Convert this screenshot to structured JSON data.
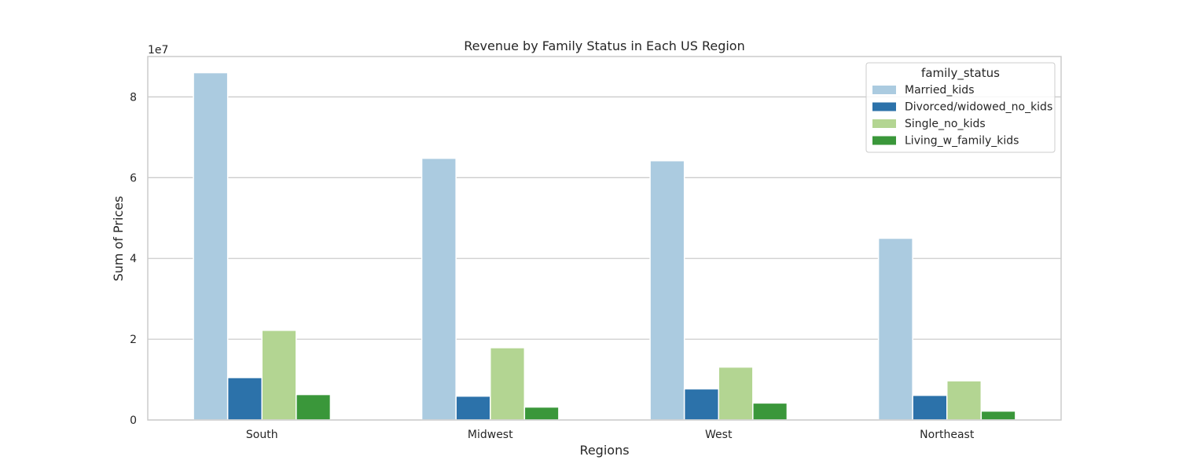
{
  "chart_data": {
    "type": "bar",
    "title": "Revenue by Family Status in Each US Region",
    "xlabel": "Regions",
    "ylabel": "Sum of Prices",
    "y_offset_label": "1e7",
    "categories": [
      "South",
      "Midwest",
      "West",
      "Northeast"
    ],
    "ylim": [
      0,
      9.0
    ],
    "yticks": [
      0,
      2,
      4,
      6,
      8
    ],
    "grid": true,
    "legend": {
      "title": "family_status",
      "placement": "top-right"
    },
    "series": [
      {
        "name": "Married_kids",
        "color": "#abcbe0",
        "values": [
          8.6,
          6.48,
          6.42,
          4.5
        ]
      },
      {
        "name": "Divorced/widowed_no_kids",
        "color": "#2c72aa",
        "values": [
          1.05,
          0.59,
          0.77,
          0.61
        ]
      },
      {
        "name": "Single_no_kids",
        "color": "#b3d592",
        "values": [
          2.22,
          1.79,
          1.31,
          0.97
        ]
      },
      {
        "name": "Living_w_family_kids",
        "color": "#3a973a",
        "values": [
          0.63,
          0.32,
          0.42,
          0.22
        ]
      }
    ]
  }
}
